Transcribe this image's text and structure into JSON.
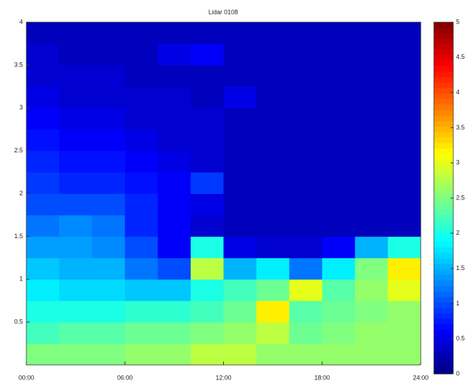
{
  "chart_data": {
    "type": "heatmap",
    "title": "Lidar 0108",
    "xbins": [
      0,
      2,
      4,
      6,
      8,
      10,
      12,
      14,
      16,
      18,
      20,
      22,
      24
    ],
    "ybins": [
      0,
      0.25,
      0.5,
      0.75,
      1,
      1.25,
      1.5,
      1.75,
      2,
      2.25,
      2.5,
      2.75,
      3,
      3.25,
      3.5,
      3.75,
      4
    ],
    "z": [
      [
        2.5,
        2.5,
        2.5,
        2.6,
        2.6,
        2.8,
        2.8,
        2.6,
        2.6,
        2.6,
        2.6,
        2.6
      ],
      [
        2.2,
        2.3,
        2.3,
        2.4,
        2.4,
        2.5,
        2.6,
        2.8,
        2.4,
        2.5,
        2.6,
        2.6
      ],
      [
        2.0,
        2.0,
        2.0,
        2.1,
        2.1,
        2.2,
        2.4,
        3.2,
        2.3,
        2.4,
        2.5,
        2.6
      ],
      [
        1.8,
        1.7,
        1.7,
        1.6,
        1.6,
        2.0,
        2.2,
        2.4,
        3.0,
        2.3,
        2.6,
        3.0
      ],
      [
        1.6,
        1.5,
        1.5,
        1.2,
        1.0,
        2.8,
        1.5,
        1.8,
        1.2,
        1.8,
        2.5,
        3.2
      ],
      [
        1.4,
        1.4,
        1.3,
        1.0,
        0.6,
        2.0,
        0.5,
        0.4,
        0.4,
        0.6,
        1.5,
        2.0
      ],
      [
        1.2,
        1.3,
        1.2,
        0.8,
        0.6,
        0.4,
        0.3,
        0.3,
        0.3,
        0.3,
        0.3,
        0.3
      ],
      [
        1.0,
        1.0,
        1.0,
        0.8,
        0.6,
        0.5,
        0.3,
        0.3,
        0.3,
        0.3,
        0.3,
        0.3
      ],
      [
        0.9,
        0.8,
        0.8,
        0.7,
        0.6,
        0.9,
        0.3,
        0.3,
        0.3,
        0.3,
        0.3,
        0.3
      ],
      [
        0.8,
        0.7,
        0.7,
        0.6,
        0.5,
        0.4,
        0.3,
        0.3,
        0.3,
        0.3,
        0.3,
        0.3
      ],
      [
        0.7,
        0.6,
        0.6,
        0.5,
        0.4,
        0.4,
        0.3,
        0.3,
        0.3,
        0.3,
        0.3,
        0.3
      ],
      [
        0.6,
        0.5,
        0.5,
        0.4,
        0.4,
        0.4,
        0.3,
        0.3,
        0.3,
        0.3,
        0.3,
        0.3
      ],
      [
        0.5,
        0.4,
        0.4,
        0.4,
        0.4,
        0.3,
        0.5,
        0.3,
        0.3,
        0.3,
        0.3,
        0.3
      ],
      [
        0.4,
        0.4,
        0.4,
        0.3,
        0.3,
        0.3,
        0.3,
        0.3,
        0.3,
        0.3,
        0.3,
        0.3
      ],
      [
        0.4,
        0.3,
        0.3,
        0.3,
        0.5,
        0.6,
        0.3,
        0.3,
        0.3,
        0.3,
        0.3,
        0.3
      ],
      [
        0.3,
        0.3,
        0.3,
        0.3,
        0.3,
        0.3,
        0.3,
        0.3,
        0.3,
        0.3,
        0.3,
        0.3
      ]
    ],
    "xlim": [
      0,
      24
    ],
    "xticks": [
      {
        "value": 0,
        "label": "00:00"
      },
      {
        "value": 6,
        "label": "06:00"
      },
      {
        "value": 12,
        "label": "12:00"
      },
      {
        "value": 18,
        "label": "18:00"
      },
      {
        "value": 24,
        "label": "24:00"
      }
    ],
    "ylim": [
      0,
      4
    ],
    "yticks": [
      0.5,
      1,
      1.5,
      2,
      2.5,
      3,
      3.5,
      4
    ],
    "clim": [
      0,
      5
    ],
    "cticks": [
      0,
      0.5,
      1,
      1.5,
      2,
      2.5,
      3,
      3.5,
      4,
      4.5,
      5
    ],
    "colormap": "jet"
  }
}
